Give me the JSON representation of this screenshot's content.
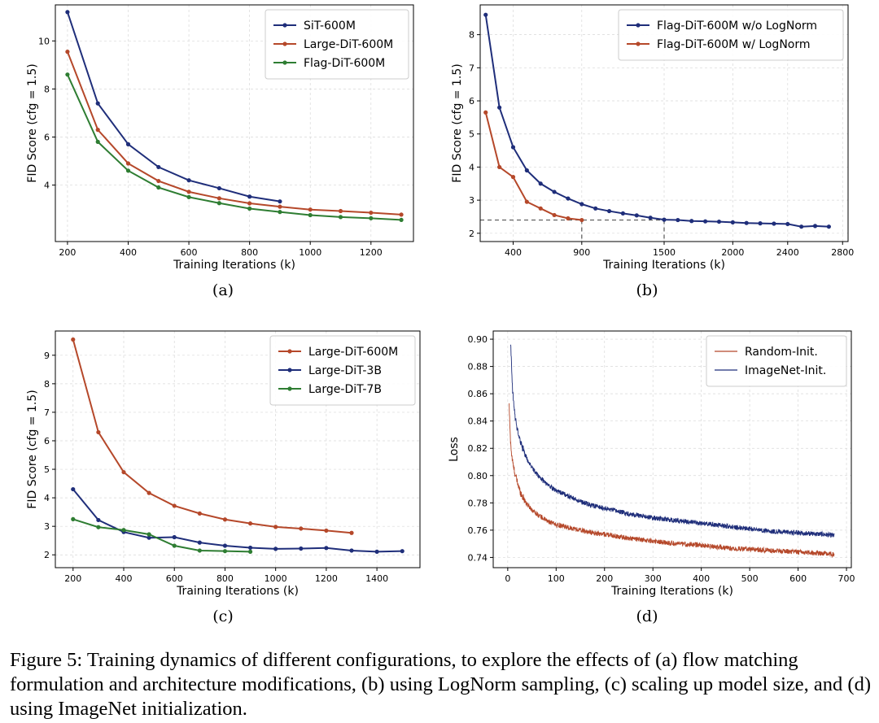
{
  "caption": "Figure 5: Training dynamics of different configurations, to explore the effects of (a) flow matching formulation and architecture modifications, (b) using LogNorm sampling, (c) scaling up model size, and (d) using ImageNet initialization.",
  "colors": {
    "navy": "#1f2e7a",
    "orange": "#b5482a",
    "green": "#2e7d32",
    "grid": "#d8d8d8"
  },
  "chart_data": [
    {
      "id": "a",
      "sub_caption": "(a)",
      "type": "line",
      "xlabel": "Training Iterations (k)",
      "ylabel": "FID Score (cfg = 1.5)",
      "xlim": [
        160,
        1340
      ],
      "ylim": [
        1.65,
        11.5
      ],
      "xticks": [
        200,
        400,
        600,
        800,
        1000,
        1200
      ],
      "yticks": [
        4,
        6,
        8,
        10
      ],
      "grid": true,
      "legend": "top-right",
      "series": [
        {
          "name": "SiT-600M",
          "color": "#1f2e7a",
          "x": [
            200,
            300,
            400,
            500,
            600,
            700,
            800,
            900
          ],
          "y": [
            11.2,
            7.4,
            5.7,
            4.75,
            4.2,
            3.87,
            3.52,
            3.32
          ]
        },
        {
          "name": "Large-DiT-600M",
          "color": "#b5482a",
          "x": [
            200,
            300,
            400,
            500,
            600,
            700,
            800,
            900,
            1000,
            1100,
            1200,
            1300
          ],
          "y": [
            9.55,
            6.3,
            4.9,
            4.17,
            3.72,
            3.45,
            3.24,
            3.1,
            2.98,
            2.92,
            2.85,
            2.77
          ]
        },
        {
          "name": "Flag-DiT-600M",
          "color": "#2e7d32",
          "x": [
            200,
            300,
            400,
            500,
            600,
            700,
            800,
            900,
            1000,
            1100,
            1200,
            1300
          ],
          "y": [
            8.6,
            5.8,
            4.6,
            3.9,
            3.5,
            3.25,
            3.02,
            2.88,
            2.75,
            2.67,
            2.62,
            2.55
          ]
        }
      ]
    },
    {
      "id": "b",
      "sub_caption": "(b)",
      "type": "line",
      "xlabel": "Training Iterations (k)",
      "ylabel": "FID Score (cfg = 1.5)",
      "xlim": [
        160,
        2840
      ],
      "ylim": [
        1.75,
        8.9
      ],
      "xticks": [
        400,
        900,
        1500,
        2000,
        2400,
        2800
      ],
      "yticks": [
        2,
        3,
        4,
        5,
        6,
        7,
        8
      ],
      "grid": true,
      "legend": "top-right",
      "reference_lines": {
        "y": 2.4,
        "x": [
          900,
          1500
        ]
      },
      "series": [
        {
          "name": "Flag-DiT-600M w/o LogNorm",
          "color": "#1f2e7a",
          "x": [
            200,
            300,
            400,
            500,
            600,
            700,
            800,
            900,
            1000,
            1100,
            1200,
            1300,
            1400,
            1500,
            1600,
            1700,
            1800,
            1900,
            2000,
            2100,
            2200,
            2300,
            2400,
            2500,
            2600,
            2700
          ],
          "y": [
            8.6,
            5.8,
            4.6,
            3.9,
            3.5,
            3.25,
            3.05,
            2.88,
            2.75,
            2.67,
            2.6,
            2.54,
            2.47,
            2.41,
            2.4,
            2.37,
            2.36,
            2.35,
            2.33,
            2.31,
            2.3,
            2.29,
            2.28,
            2.2,
            2.22,
            2.2
          ]
        },
        {
          "name": "Flag-DiT-600M w/ LogNorm",
          "color": "#b5482a",
          "x": [
            200,
            300,
            400,
            500,
            600,
            700,
            800,
            900
          ],
          "y": [
            5.65,
            4.0,
            3.7,
            2.95,
            2.75,
            2.55,
            2.45,
            2.4
          ]
        }
      ]
    },
    {
      "id": "c",
      "sub_caption": "(c)",
      "type": "line",
      "xlabel": "Training Iterations (k)",
      "ylabel": "FID Score (cfg = 1.5)",
      "xlim": [
        130,
        1570
      ],
      "ylim": [
        1.55,
        9.85
      ],
      "xticks": [
        200,
        400,
        600,
        800,
        1000,
        1200,
        1400
      ],
      "yticks": [
        2,
        3,
        4,
        5,
        6,
        7,
        8,
        9
      ],
      "grid": true,
      "legend": "top-right",
      "series": [
        {
          "name": "Large-DiT-600M",
          "color": "#b5482a",
          "x": [
            200,
            300,
            400,
            500,
            600,
            700,
            800,
            900,
            1000,
            1100,
            1200,
            1300
          ],
          "y": [
            9.55,
            6.3,
            4.9,
            4.17,
            3.72,
            3.45,
            3.24,
            3.1,
            2.98,
            2.92,
            2.85,
            2.77
          ]
        },
        {
          "name": "Large-DiT-3B",
          "color": "#1f2e7a",
          "x": [
            200,
            300,
            400,
            500,
            600,
            700,
            800,
            900,
            1000,
            1100,
            1200,
            1300,
            1400,
            1500
          ],
          "y": [
            4.3,
            3.22,
            2.8,
            2.6,
            2.62,
            2.43,
            2.32,
            2.25,
            2.21,
            2.22,
            2.24,
            2.15,
            2.11,
            2.13
          ]
        },
        {
          "name": "Large-DiT-7B",
          "color": "#2e7d32",
          "x": [
            200,
            300,
            400,
            500,
            600,
            700,
            800,
            900
          ],
          "y": [
            3.25,
            2.97,
            2.87,
            2.72,
            2.32,
            2.15,
            2.13,
            2.11
          ]
        }
      ]
    },
    {
      "id": "d",
      "sub_caption": "(d)",
      "type": "line",
      "xlabel": "Training Iterations (k)",
      "ylabel": "Loss",
      "xlim": [
        -30,
        710
      ],
      "ylim": [
        0.7325,
        0.906
      ],
      "xticks": [
        0,
        100,
        200,
        300,
        400,
        500,
        600,
        700
      ],
      "yticks": [
        0.74,
        0.76,
        0.78,
        0.8,
        0.82,
        0.84,
        0.86,
        0.88,
        0.9
      ],
      "grid": true,
      "legend": "top-right",
      "series": [
        {
          "name": "Random-Init.",
          "color": "#b5482a",
          "x": [
            3,
            5,
            8,
            12,
            16,
            20,
            25,
            30,
            40,
            50,
            60,
            80,
            100,
            125,
            150,
            175,
            200,
            250,
            300,
            350,
            400,
            450,
            500,
            550,
            600,
            650,
            675
          ],
          "y": [
            0.851,
            0.83,
            0.815,
            0.806,
            0.8,
            0.795,
            0.789,
            0.785,
            0.779,
            0.775,
            0.772,
            0.767,
            0.764,
            0.762,
            0.76,
            0.758,
            0.757,
            0.754,
            0.752,
            0.75,
            0.749,
            0.747,
            0.746,
            0.745,
            0.744,
            0.743,
            0.742
          ]
        },
        {
          "name": "ImageNet-Init.",
          "color": "#1f2e7a",
          "x": [
            6,
            8,
            10,
            13,
            16,
            20,
            25,
            30,
            40,
            50,
            60,
            80,
            100,
            125,
            150,
            175,
            200,
            250,
            300,
            350,
            400,
            450,
            500,
            550,
            600,
            650,
            675
          ],
          "y": [
            0.898,
            0.878,
            0.862,
            0.85,
            0.841,
            0.834,
            0.826,
            0.821,
            0.812,
            0.806,
            0.801,
            0.794,
            0.789,
            0.785,
            0.781,
            0.778,
            0.776,
            0.772,
            0.769,
            0.767,
            0.765,
            0.763,
            0.761,
            0.759,
            0.758,
            0.757,
            0.756
          ]
        }
      ]
    }
  ]
}
